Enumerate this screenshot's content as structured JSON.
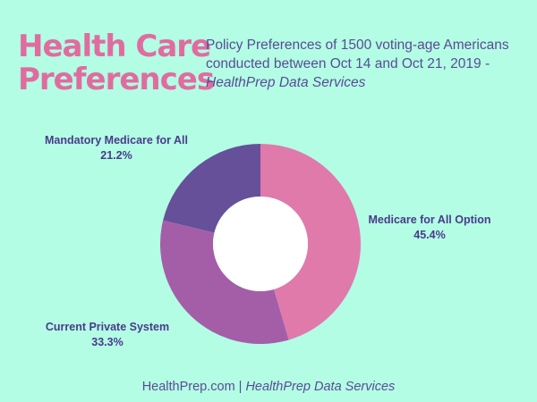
{
  "header": {
    "title_line1": "Health Care",
    "title_line2": "Preferences",
    "subtitle_line1": "Policy Preferences of 1500 voting-age Americans",
    "subtitle_line2": "conducted between Oct 14 and Oct 21, 2019 -",
    "subtitle_source": "HealthPrep Data Services"
  },
  "chart_data": {
    "type": "pie",
    "donut": true,
    "title": "Health Care Preferences",
    "slices": [
      {
        "label": "Medicare for All Option",
        "value": 45.4,
        "display": "45.4%",
        "color": "#e07aab"
      },
      {
        "label": "Current Private System",
        "value": 33.3,
        "display": "33.3%",
        "color": "#a45ea8"
      },
      {
        "label": "Mandatory Medicare for All",
        "value": 21.2,
        "display": "21.2%",
        "color": "#66509a"
      }
    ]
  },
  "footer": {
    "site": "HealthPrep.com",
    "separator": "|",
    "source": "HealthPrep Data Services"
  }
}
